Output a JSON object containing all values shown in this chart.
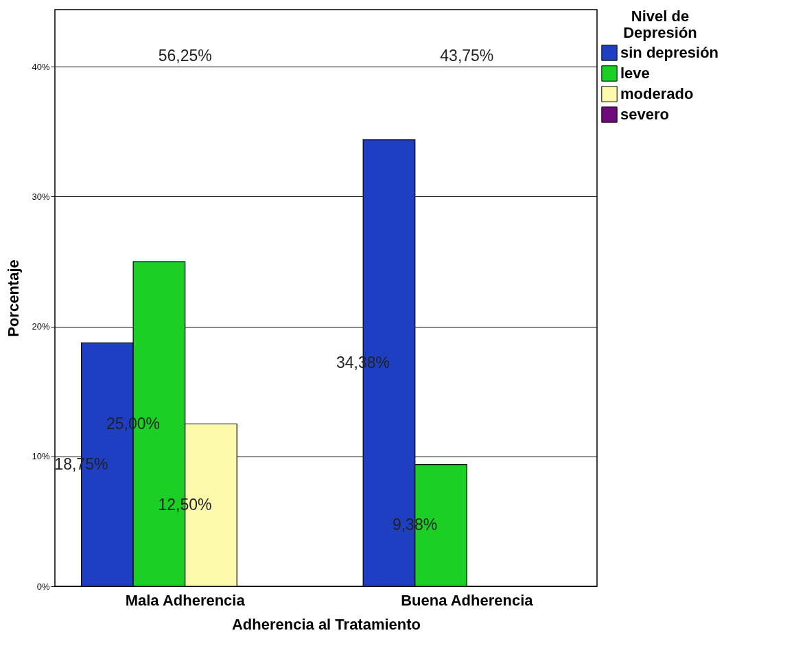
{
  "chart_data": {
    "type": "bar",
    "xlabel": "Adherencia al Tratamiento",
    "ylabel": "Porcentaje",
    "legend_title": "Nivel de Depresión",
    "categories": [
      "Mala Adherencia",
      "Buena Adherencia"
    ],
    "series": [
      {
        "name": "sin depresión",
        "color": "#1f3fc2",
        "values": [
          18.75,
          34.38
        ],
        "value_labels": [
          "18,75%",
          "34,38%"
        ]
      },
      {
        "name": "leve",
        "color": "#1ccf24",
        "values": [
          25.0,
          9.38
        ],
        "value_labels": [
          "25,00%",
          "9,38%"
        ]
      },
      {
        "name": "moderado",
        "color": "#fdfaab",
        "values": [
          12.5,
          null
        ],
        "value_labels": [
          "12,50%",
          null
        ]
      },
      {
        "name": "severo",
        "color": "#6f0a7d",
        "values": [
          null,
          null
        ],
        "value_labels": [
          null,
          null
        ]
      }
    ],
    "annotations": [
      "56,25%",
      "43,75%"
    ],
    "ylim": [
      0,
      44.4
    ],
    "yticks": [
      {
        "value": 0,
        "label": "0%"
      },
      {
        "value": 10,
        "label": "10%"
      },
      {
        "value": 20,
        "label": "20%"
      },
      {
        "value": 30,
        "label": "30%"
      },
      {
        "value": 40,
        "label": "40%"
      }
    ],
    "grid": "y",
    "legend": "top right"
  }
}
